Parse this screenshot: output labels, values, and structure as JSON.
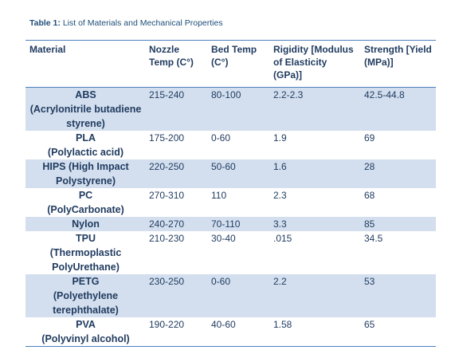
{
  "caption": {
    "label": "Table 1:",
    "text": " List of Materials and Mechanical Properties"
  },
  "headers": [
    "Material",
    "Nozzle Temp (C°)",
    "Bed Temp (C°)",
    "Rigidity [Modulus of Elasticity (GPa)]",
    "Strength [Yield (MPa)]"
  ],
  "rows": [
    {
      "material": "ABS",
      "full_name": "(Acrylonitrile butadiene styrene)",
      "nozzle": "215-240",
      "bed": "80-100",
      "rigidity": "2.2-2.3",
      "strength": "42.5-44.8"
    },
    {
      "material": "PLA",
      "full_name": "(Polylactic acid)",
      "nozzle": "175-200",
      "bed": "0-60",
      "rigidity": "1.9",
      "strength": "69"
    },
    {
      "material": "HIPS",
      "full_name": "(High Impact Polystyrene)",
      "nozzle": "220-250",
      "bed": "50-60",
      "rigidity": "1.6",
      "strength": "28"
    },
    {
      "material": "PC",
      "full_name": "(PolyCarbonate)",
      "nozzle": "270-310",
      "bed": "110",
      "rigidity": "2.3",
      "strength": "68"
    },
    {
      "material": "Nylon",
      "full_name": "",
      "nozzle": "240-270",
      "bed": "70-110",
      "rigidity": "3.3",
      "strength": "85"
    },
    {
      "material": "TPU",
      "full_name": "(Thermoplastic PolyUrethane)",
      "nozzle": "210-230",
      "bed": "30-40",
      "rigidity": ".015",
      "strength": "34.5"
    },
    {
      "material": "PETG",
      "full_name": "(Polyethylene terephthalate)",
      "nozzle": "230-250",
      "bed": "0-60",
      "rigidity": "2.2",
      "strength": "53"
    },
    {
      "material": "PVA",
      "full_name": "(Polyvinyl alcohol)",
      "nozzle": "190-220",
      "bed": "40-60",
      "rigidity": "1.58",
      "strength": "65"
    }
  ]
}
